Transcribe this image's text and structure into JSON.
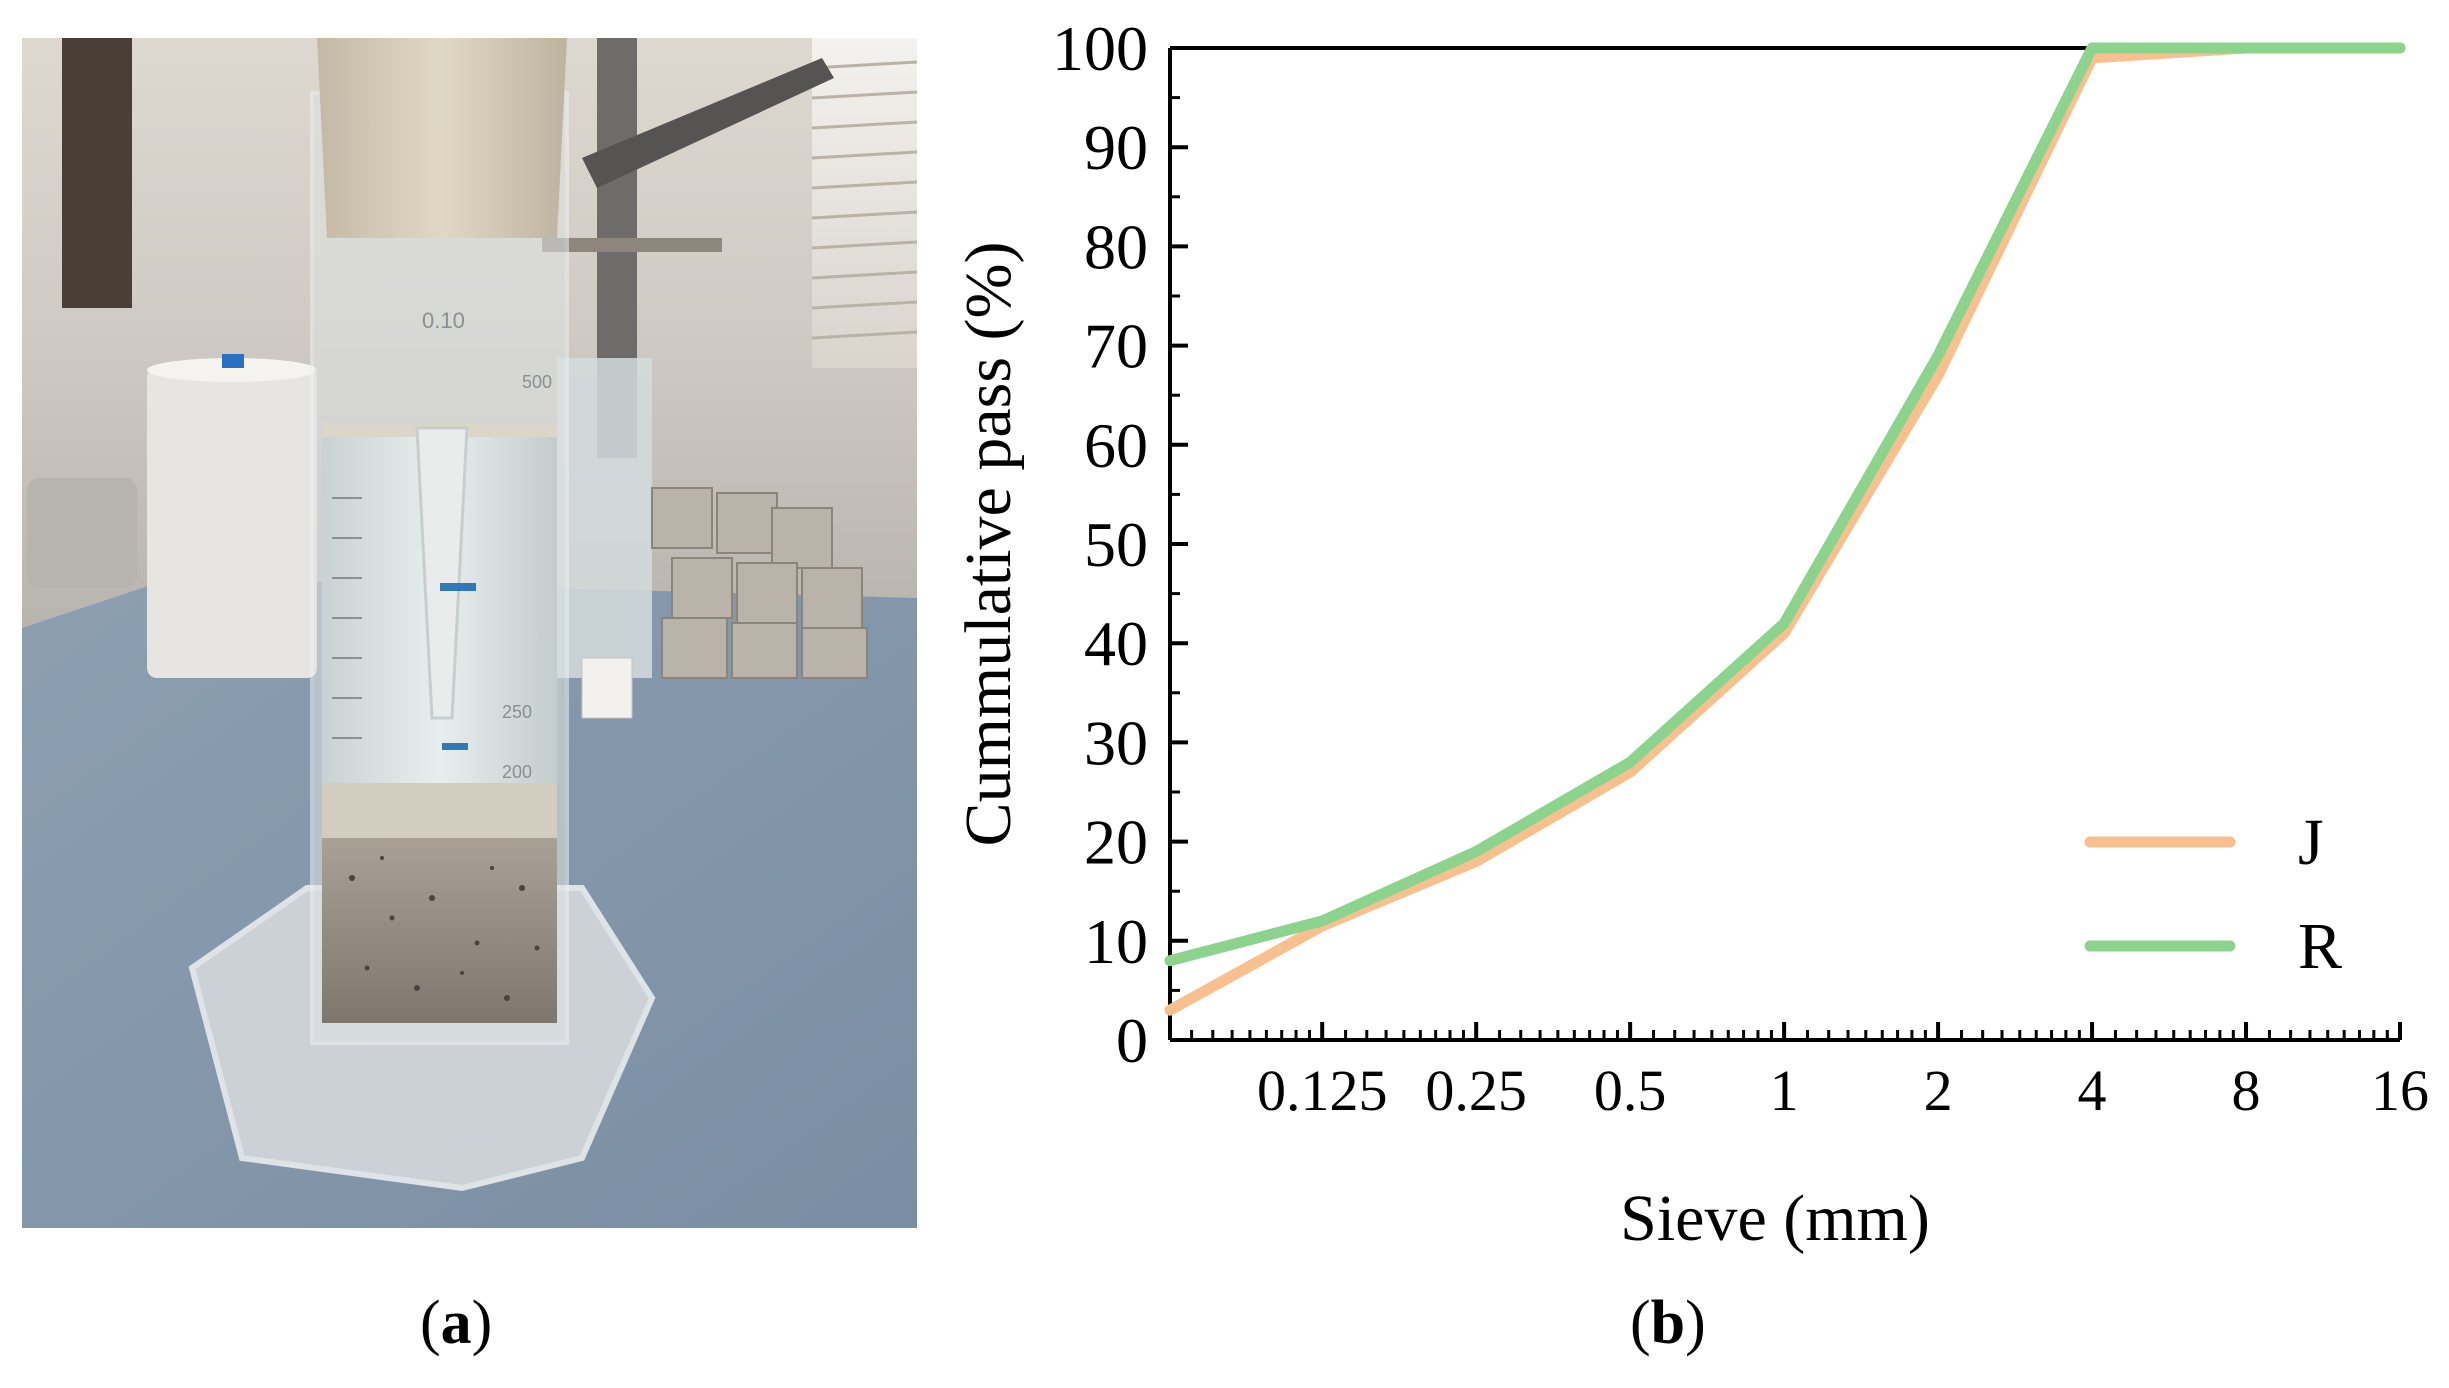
{
  "panels": {
    "a": {
      "paren_open": "(",
      "letter": "a",
      "paren_close": ")"
    },
    "b": {
      "paren_open": "(",
      "letter": "b",
      "paren_close": ")"
    }
  },
  "photo": {
    "graduation_labels": [
      "500",
      "250",
      "200"
    ],
    "cylinder_text": "0.10"
  },
  "chart_data": {
    "type": "line",
    "xscale": "log2",
    "xlabel": "Sieve (mm)",
    "ylabel": "Cummulative pass  (%)",
    "xticks": [
      0.125,
      0.25,
      0.5,
      1,
      2,
      4,
      8,
      16
    ],
    "xtick_labels": [
      "0.125",
      "0.25",
      "0.5",
      "1",
      "2",
      "4",
      "8",
      "16"
    ],
    "yticks": [
      0,
      10,
      20,
      30,
      40,
      50,
      60,
      70,
      80,
      90,
      100
    ],
    "ytick_labels": [
      "0",
      "10",
      "20",
      "30",
      "40",
      "50",
      "60",
      "70",
      "80",
      "90",
      "100"
    ],
    "xlim": [
      0.063,
      16
    ],
    "ylim": [
      0,
      100
    ],
    "grid": false,
    "legend_position": "bottom-right",
    "series": [
      {
        "name": "J",
        "color": "#F9C08F",
        "x": [
          0.063,
          0.125,
          0.25,
          0.5,
          1,
          2,
          4,
          8,
          16
        ],
        "y": [
          3,
          11.5,
          18,
          27,
          41,
          67,
          99,
          100,
          100
        ]
      },
      {
        "name": "R",
        "color": "#8CD38E",
        "x": [
          0.063,
          0.125,
          0.25,
          0.5,
          1,
          2,
          4,
          8,
          16
        ],
        "y": [
          8,
          12,
          19,
          28,
          42,
          69,
          100,
          100,
          100
        ]
      }
    ]
  }
}
